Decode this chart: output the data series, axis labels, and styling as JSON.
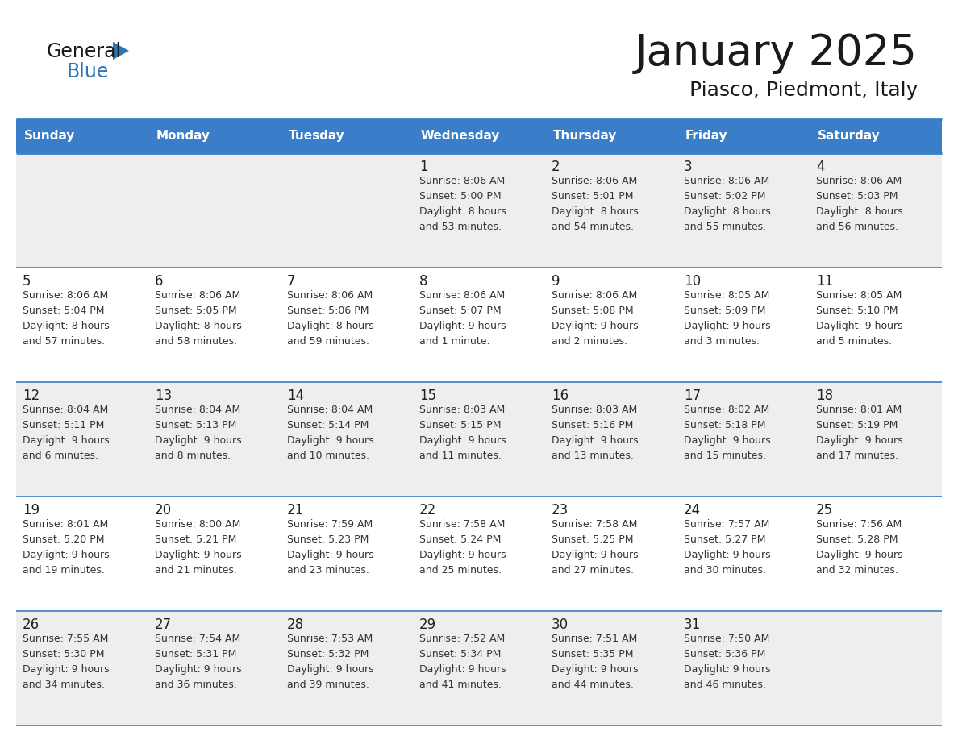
{
  "title": "January 2025",
  "subtitle": "Piasco, Piedmont, Italy",
  "header_color": "#3A7DC9",
  "header_text_color": "#FFFFFF",
  "day_names": [
    "Sunday",
    "Monday",
    "Tuesday",
    "Wednesday",
    "Thursday",
    "Friday",
    "Saturday"
  ],
  "title_font_size": 38,
  "subtitle_font_size": 18,
  "cell_text_color": "#333333",
  "day_number_color": "#222222",
  "row_colors": [
    "#eeeeee",
    "#ffffff",
    "#eeeeee",
    "#ffffff",
    "#eeeeee"
  ],
  "border_color": "#3A7DC9",
  "logo_general_color": "#1a1a1a",
  "logo_blue_color": "#2E75B6",
  "logo_triangle_color": "#2E75B6",
  "calendar": [
    [
      {
        "day": "",
        "sunrise": "",
        "sunset": "",
        "daylight": ""
      },
      {
        "day": "",
        "sunrise": "",
        "sunset": "",
        "daylight": ""
      },
      {
        "day": "",
        "sunrise": "",
        "sunset": "",
        "daylight": ""
      },
      {
        "day": "1",
        "sunrise": "8:06 AM",
        "sunset": "5:00 PM",
        "daylight_h": "8 hours",
        "daylight_m": "and 53 minutes."
      },
      {
        "day": "2",
        "sunrise": "8:06 AM",
        "sunset": "5:01 PM",
        "daylight_h": "8 hours",
        "daylight_m": "and 54 minutes."
      },
      {
        "day": "3",
        "sunrise": "8:06 AM",
        "sunset": "5:02 PM",
        "daylight_h": "8 hours",
        "daylight_m": "and 55 minutes."
      },
      {
        "day": "4",
        "sunrise": "8:06 AM",
        "sunset": "5:03 PM",
        "daylight_h": "8 hours",
        "daylight_m": "and 56 minutes."
      }
    ],
    [
      {
        "day": "5",
        "sunrise": "8:06 AM",
        "sunset": "5:04 PM",
        "daylight_h": "8 hours",
        "daylight_m": "and 57 minutes."
      },
      {
        "day": "6",
        "sunrise": "8:06 AM",
        "sunset": "5:05 PM",
        "daylight_h": "8 hours",
        "daylight_m": "and 58 minutes."
      },
      {
        "day": "7",
        "sunrise": "8:06 AM",
        "sunset": "5:06 PM",
        "daylight_h": "8 hours",
        "daylight_m": "and 59 minutes."
      },
      {
        "day": "8",
        "sunrise": "8:06 AM",
        "sunset": "5:07 PM",
        "daylight_h": "9 hours",
        "daylight_m": "and 1 minute."
      },
      {
        "day": "9",
        "sunrise": "8:06 AM",
        "sunset": "5:08 PM",
        "daylight_h": "9 hours",
        "daylight_m": "and 2 minutes."
      },
      {
        "day": "10",
        "sunrise": "8:05 AM",
        "sunset": "5:09 PM",
        "daylight_h": "9 hours",
        "daylight_m": "and 3 minutes."
      },
      {
        "day": "11",
        "sunrise": "8:05 AM",
        "sunset": "5:10 PM",
        "daylight_h": "9 hours",
        "daylight_m": "and 5 minutes."
      }
    ],
    [
      {
        "day": "12",
        "sunrise": "8:04 AM",
        "sunset": "5:11 PM",
        "daylight_h": "9 hours",
        "daylight_m": "and 6 minutes."
      },
      {
        "day": "13",
        "sunrise": "8:04 AM",
        "sunset": "5:13 PM",
        "daylight_h": "9 hours",
        "daylight_m": "and 8 minutes."
      },
      {
        "day": "14",
        "sunrise": "8:04 AM",
        "sunset": "5:14 PM",
        "daylight_h": "9 hours",
        "daylight_m": "and 10 minutes."
      },
      {
        "day": "15",
        "sunrise": "8:03 AM",
        "sunset": "5:15 PM",
        "daylight_h": "9 hours",
        "daylight_m": "and 11 minutes."
      },
      {
        "day": "16",
        "sunrise": "8:03 AM",
        "sunset": "5:16 PM",
        "daylight_h": "9 hours",
        "daylight_m": "and 13 minutes."
      },
      {
        "day": "17",
        "sunrise": "8:02 AM",
        "sunset": "5:18 PM",
        "daylight_h": "9 hours",
        "daylight_m": "and 15 minutes."
      },
      {
        "day": "18",
        "sunrise": "8:01 AM",
        "sunset": "5:19 PM",
        "daylight_h": "9 hours",
        "daylight_m": "and 17 minutes."
      }
    ],
    [
      {
        "day": "19",
        "sunrise": "8:01 AM",
        "sunset": "5:20 PM",
        "daylight_h": "9 hours",
        "daylight_m": "and 19 minutes."
      },
      {
        "day": "20",
        "sunrise": "8:00 AM",
        "sunset": "5:21 PM",
        "daylight_h": "9 hours",
        "daylight_m": "and 21 minutes."
      },
      {
        "day": "21",
        "sunrise": "7:59 AM",
        "sunset": "5:23 PM",
        "daylight_h": "9 hours",
        "daylight_m": "and 23 minutes."
      },
      {
        "day": "22",
        "sunrise": "7:58 AM",
        "sunset": "5:24 PM",
        "daylight_h": "9 hours",
        "daylight_m": "and 25 minutes."
      },
      {
        "day": "23",
        "sunrise": "7:58 AM",
        "sunset": "5:25 PM",
        "daylight_h": "9 hours",
        "daylight_m": "and 27 minutes."
      },
      {
        "day": "24",
        "sunrise": "7:57 AM",
        "sunset": "5:27 PM",
        "daylight_h": "9 hours",
        "daylight_m": "and 30 minutes."
      },
      {
        "day": "25",
        "sunrise": "7:56 AM",
        "sunset": "5:28 PM",
        "daylight_h": "9 hours",
        "daylight_m": "and 32 minutes."
      }
    ],
    [
      {
        "day": "26",
        "sunrise": "7:55 AM",
        "sunset": "5:30 PM",
        "daylight_h": "9 hours",
        "daylight_m": "and 34 minutes."
      },
      {
        "day": "27",
        "sunrise": "7:54 AM",
        "sunset": "5:31 PM",
        "daylight_h": "9 hours",
        "daylight_m": "and 36 minutes."
      },
      {
        "day": "28",
        "sunrise": "7:53 AM",
        "sunset": "5:32 PM",
        "daylight_h": "9 hours",
        "daylight_m": "and 39 minutes."
      },
      {
        "day": "29",
        "sunrise": "7:52 AM",
        "sunset": "5:34 PM",
        "daylight_h": "9 hours",
        "daylight_m": "and 41 minutes."
      },
      {
        "day": "30",
        "sunrise": "7:51 AM",
        "sunset": "5:35 PM",
        "daylight_h": "9 hours",
        "daylight_m": "and 44 minutes."
      },
      {
        "day": "31",
        "sunrise": "7:50 AM",
        "sunset": "5:36 PM",
        "daylight_h": "9 hours",
        "daylight_m": "and 46 minutes."
      },
      {
        "day": "",
        "sunrise": "",
        "sunset": "",
        "daylight_h": "",
        "daylight_m": ""
      }
    ]
  ]
}
